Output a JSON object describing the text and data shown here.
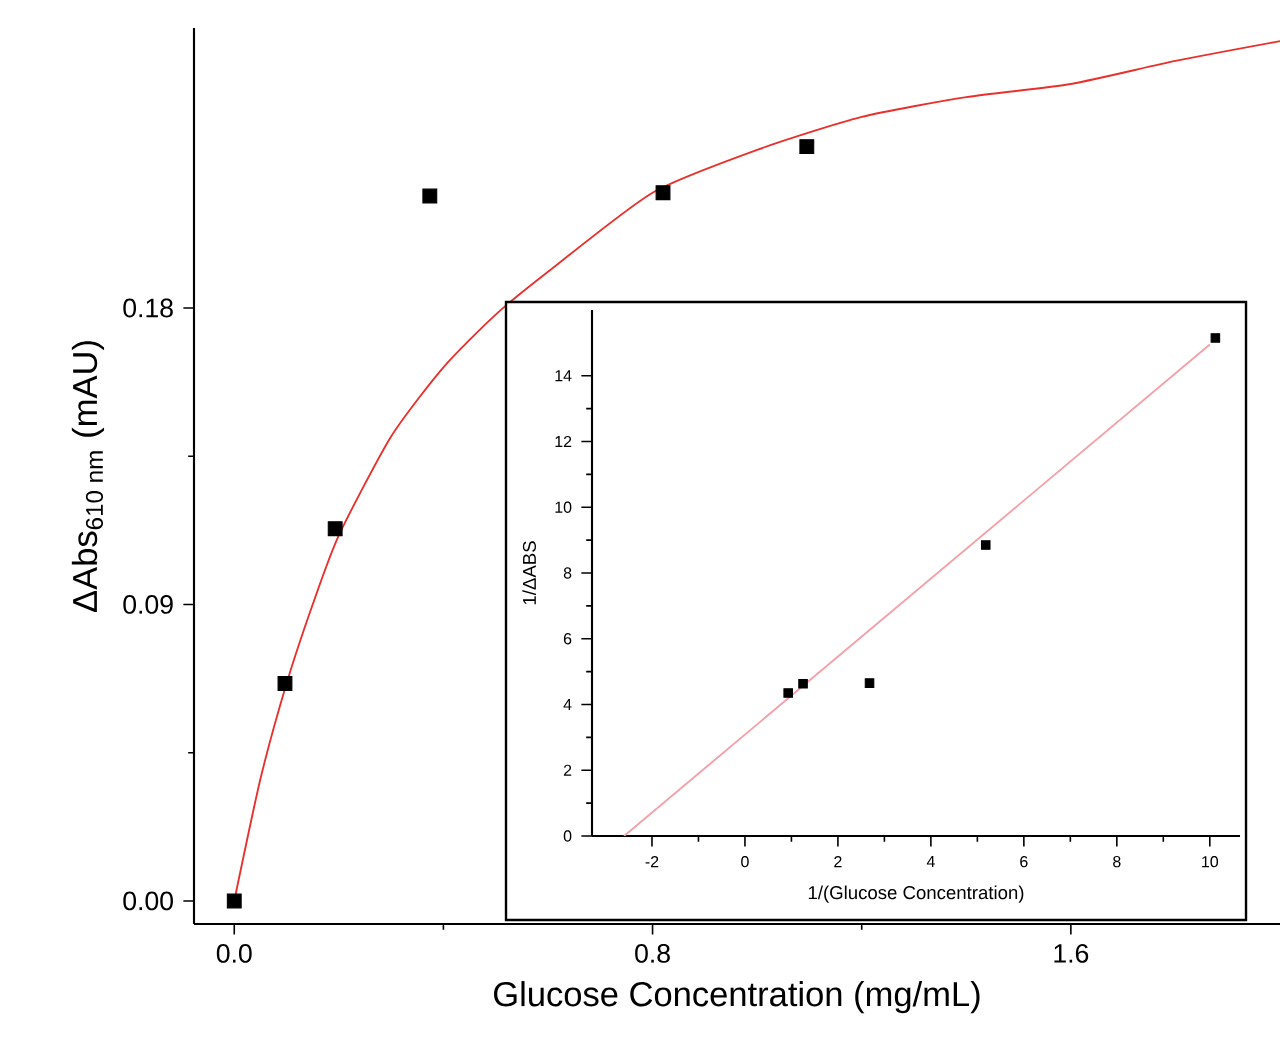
{
  "chart_data": [
    {
      "type": "scatter",
      "xlabel": "Glucose Concentration (mg/mL)",
      "ylabel": "ΔAbs$_{610 nm}$ (mAU)",
      "xlim": [
        -0.077,
        2.0
      ],
      "ylim": [
        -0.007,
        0.265
      ],
      "xticks": [
        {
          "value": 0,
          "label": "0.0"
        },
        0.8,
        1.6
      ],
      "yticks": [
        {
          "value": 0,
          "label": "0.00"
        },
        0.09,
        0.18
      ],
      "series": [
        {
          "color": "#000000",
          "marker": "square",
          "x": [
            0,
            0.097,
            0.193,
            0.374,
            0.82,
            1.095
          ],
          "values": [
            0,
            0.066,
            0.113,
            0.214,
            0.215,
            0.229
          ]
        },
        {
          "type": "line",
          "color": "#e8302c",
          "marker": "none",
          "line_style": "solid",
          "x": [
            0,
            0.05,
            0.1,
            0.15,
            0.2,
            0.3,
            0.4,
            0.5,
            0.6,
            0.8,
            1.0,
            1.2,
            1.4,
            1.6,
            1.8,
            2.0
          ],
          "values": [
            0,
            0.037,
            0.066,
            0.09,
            0.111,
            0.141,
            0.162,
            0.178,
            0.191,
            0.215,
            0.228,
            0.238,
            0.244,
            0.248,
            0.255,
            0.261
          ]
        }
      ]
    },
    {
      "type": "scatter",
      "xlabel": "1/(Glucose Concentration)",
      "ylabel": "1/ΔABS",
      "xlim": [
        -3.29,
        10.65
      ],
      "ylim": [
        0,
        16
      ],
      "xticks": [
        -2,
        0,
        2,
        4,
        6,
        8,
        10
      ],
      "yticks": [
        0,
        2,
        4,
        6,
        8,
        10,
        12,
        14
      ],
      "series": [
        {
          "color": "#000000",
          "marker": "square",
          "x": [
            0.93,
            1.25,
            2.68,
            5.18,
            10.12
          ],
          "values": [
            4.35,
            4.63,
            4.65,
            8.85,
            15.15
          ]
        },
        {
          "type": "line",
          "color": "#f4a0a8",
          "marker": "none",
          "line_style": "solid",
          "x": [
            -2.6,
            10.0
          ],
          "values": [
            0,
            14.95
          ]
        }
      ]
    }
  ]
}
